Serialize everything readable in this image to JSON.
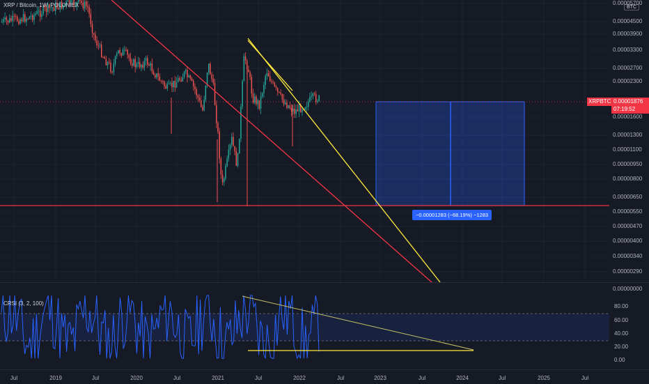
{
  "chart": {
    "legend": "XRP / Bitcoin, 1W, POLONIEX",
    "currency_label": "BTC",
    "symbol_tag": "XRPBTC",
    "last_price": "0.00001876",
    "countdown": "07:19:52",
    "y_axis_labels": [
      "0.00005700",
      "0.00004500",
      "0.00003900",
      "0.00003300",
      "0.00002700",
      "0.00002300",
      "0.00001600",
      "0.00001300",
      "0.00001100",
      "0.00000950",
      "0.00000800",
      "0.00000650",
      "0.00000550",
      "0.00000470",
      "0.00000400",
      "0.00000340",
      "0.00000290",
      "0.00000000"
    ],
    "measure_label": "−0.00001283 (−68.19%) −1283",
    "colors": {
      "up": "#26a69a",
      "down": "#ef5350",
      "red_line": "#f23645",
      "yellow_line": "#ffeb3b",
      "measure": "#2962ff"
    }
  },
  "indicator": {
    "legend": "CRSI (3, 2, 100)",
    "y_axis_labels": [
      "80.00",
      "60.00",
      "40.00",
      "20.00",
      "0.00"
    ]
  },
  "time_axis": {
    "labels": [
      "Jul",
      "2019",
      "Jul",
      "2020",
      "Jul",
      "2021",
      "Jul",
      "2022",
      "Jul",
      "2023",
      "Jul",
      "2024",
      "Jul",
      "2025",
      "Jul"
    ]
  },
  "chart_data": {
    "type": "candlestick",
    "title": "XRP / Bitcoin, 1W, POLONIEX",
    "y_scale": "log",
    "last_price": 1.876e-05,
    "indicator": {
      "name": "CRSI (3, 2, 100)",
      "ylim": [
        0,
        100
      ],
      "bands": [
        30,
        70
      ]
    }
  }
}
